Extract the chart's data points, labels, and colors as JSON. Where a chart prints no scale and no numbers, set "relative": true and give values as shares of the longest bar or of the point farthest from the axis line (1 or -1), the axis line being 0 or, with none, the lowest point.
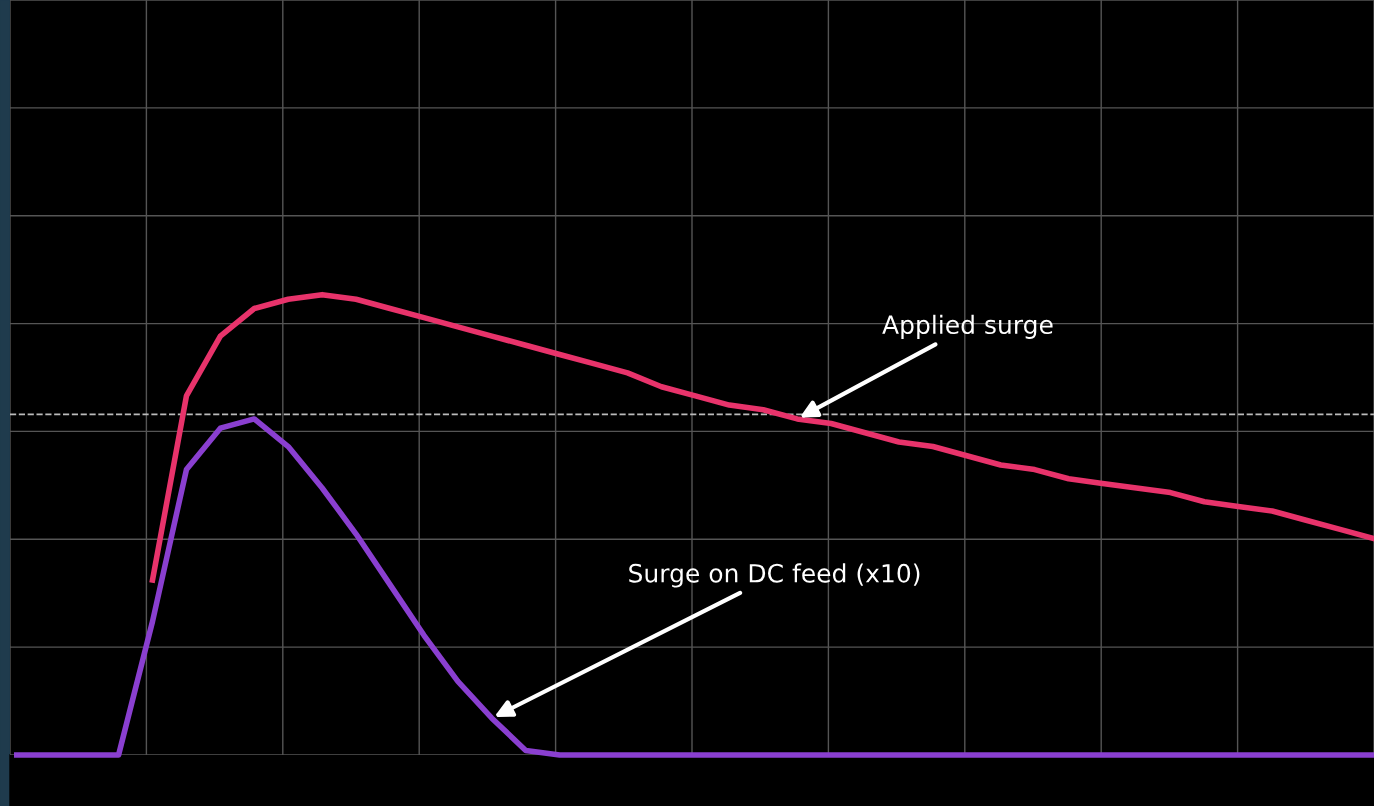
{
  "chart_data": {
    "type": "line",
    "relative": true,
    "grid": true,
    "line_style": "solid",
    "marker": "none",
    "categories": [
      null,
      null,
      null,
      null,
      null,
      null,
      null,
      null,
      null,
      null,
      null,
      null,
      null,
      null,
      null,
      null,
      null,
      null,
      null,
      null,
      null,
      null,
      null,
      null,
      null,
      null,
      null,
      null,
      null,
      null,
      null,
      null,
      null,
      null,
      null,
      null,
      null,
      null,
      null,
      null,
      null
    ],
    "series": [
      {
        "color": "#e8336b",
        "values": [
          null,
          null,
          null,
          null,
          0.38,
          0.78,
          0.91,
          0.97,
          0.99,
          1.0,
          0.99,
          0.97,
          0.95,
          0.93,
          0.91,
          0.89,
          0.87,
          0.85,
          0.83,
          0.8,
          0.78,
          0.76,
          0.75,
          0.73,
          0.72,
          0.7,
          0.68,
          0.67,
          0.65,
          0.63,
          0.62,
          0.6,
          0.59,
          0.58,
          0.57,
          0.55,
          0.54,
          0.53,
          0.51,
          0.49,
          0.47
        ]
      },
      {
        "color": "#8a3fd0",
        "values": [
          0,
          0,
          0,
          0,
          0.29,
          0.62,
          0.71,
          0.73,
          0.67,
          0.58,
          0.48,
          0.37,
          0.26,
          0.16,
          0.08,
          0.01,
          0,
          0,
          0,
          0,
          0,
          0,
          0,
          0,
          0,
          0,
          0,
          0,
          0,
          0,
          0,
          0,
          0,
          0,
          0,
          0,
          0,
          0,
          0,
          0,
          0
        ]
      }
    ],
    "ref_lines": [
      {
        "axis": "y",
        "value": 0.74,
        "color": "#bbbbbb",
        "line_style": "dashed"
      }
    ],
    "annotations": [
      "Applied surge",
      "Surge on DC feed (x10)"
    ]
  }
}
